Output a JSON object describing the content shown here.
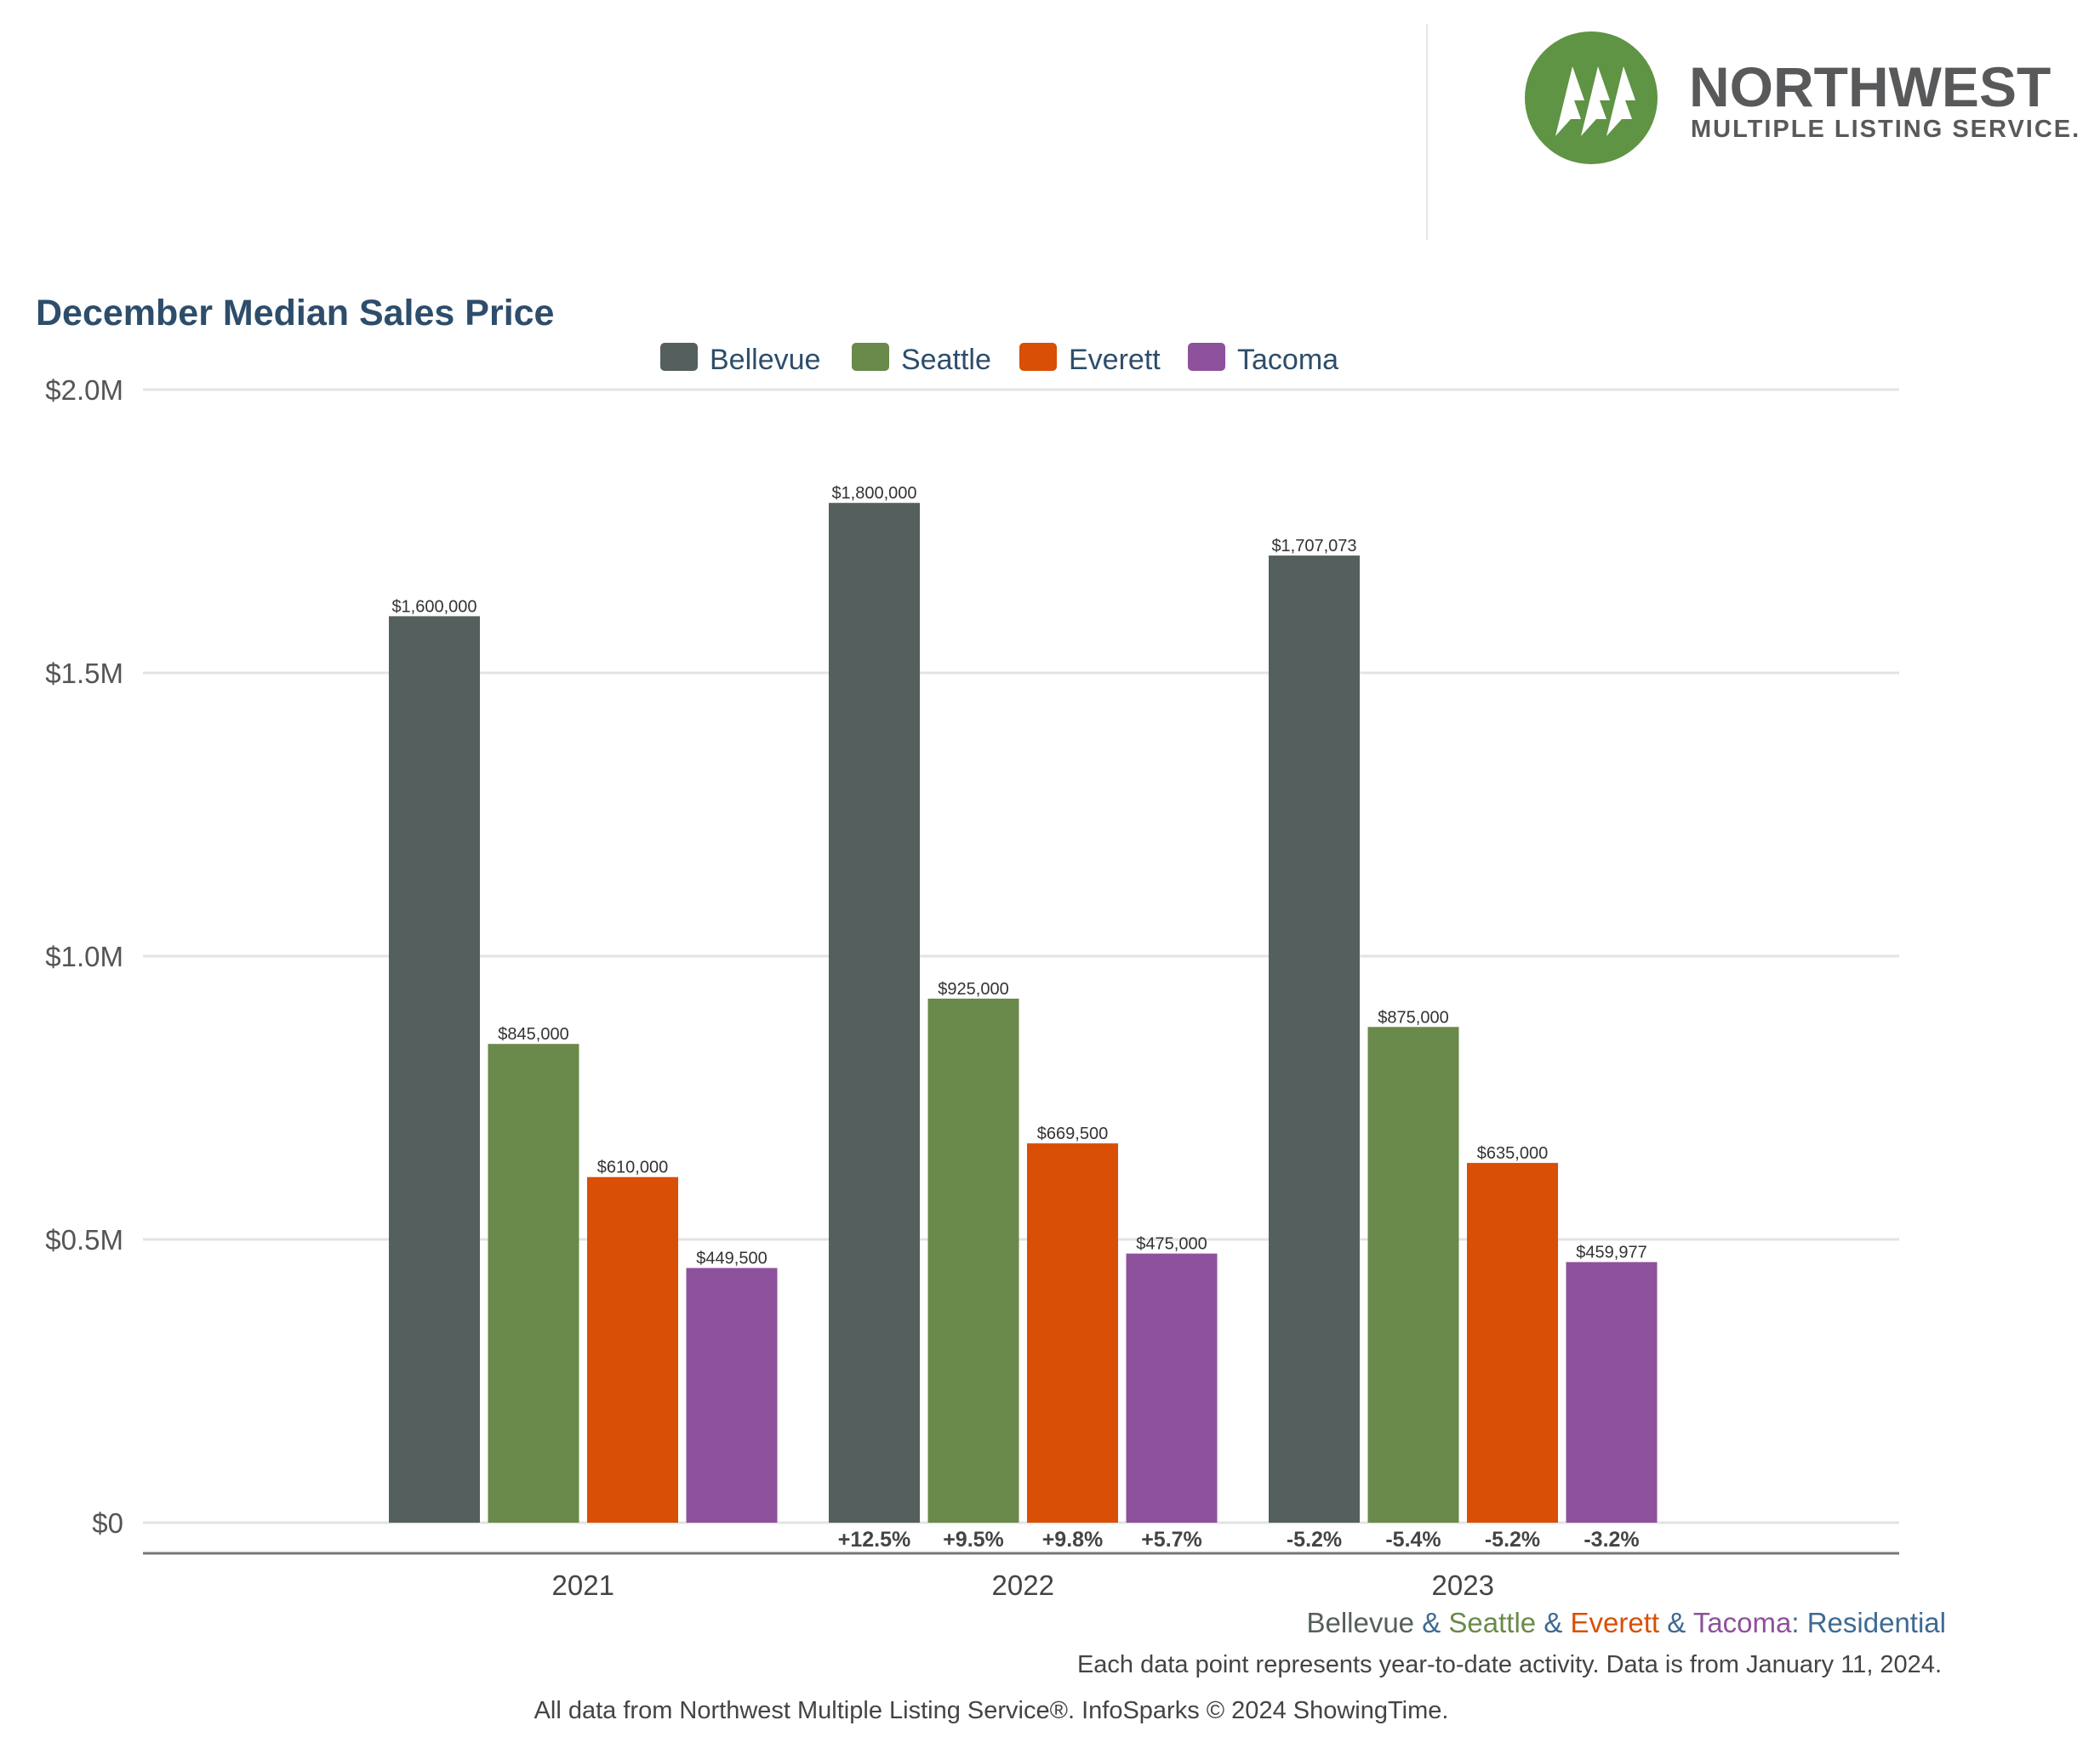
{
  "logo": {
    "name": "NORTHWEST",
    "subtitle": "MULTIPLE LISTING SERVICE.",
    "color": "#5e9444"
  },
  "chart_data": {
    "type": "bar",
    "title": "December Median Sales Price",
    "categories": [
      "2021",
      "2022",
      "2023"
    ],
    "series": [
      {
        "name": "Bellevue",
        "color": "#555f5d",
        "values": [
          1600000,
          1800000,
          1707073
        ],
        "labels": [
          "$1,600,000",
          "$1,800,000",
          "$1,707,073"
        ],
        "changes": [
          "",
          "+12.5%",
          "-5.2%"
        ]
      },
      {
        "name": "Seattle",
        "color": "#698a4a",
        "values": [
          845000,
          925000,
          875000
        ],
        "labels": [
          "$845,000",
          "$925,000",
          "$875,000"
        ],
        "changes": [
          "",
          "+9.5%",
          "-5.4%"
        ]
      },
      {
        "name": "Everett",
        "color": "#d94f05",
        "values": [
          610000,
          669500,
          635000
        ],
        "labels": [
          "$610,000",
          "$669,500",
          "$635,000"
        ],
        "changes": [
          "",
          "+9.8%",
          "-5.2%"
        ]
      },
      {
        "name": "Tacoma",
        "color": "#8e519b",
        "values": [
          449500,
          475000,
          459977
        ],
        "labels": [
          "$449,500",
          "$475,000",
          "$459,977"
        ],
        "changes": [
          "",
          "+5.7%",
          "-3.2%"
        ]
      }
    ],
    "yticks": [
      {
        "value": 0,
        "label": "$0"
      },
      {
        "value": 500000,
        "label": "$0.5M"
      },
      {
        "value": 1000000,
        "label": "$1.0M"
      },
      {
        "value": 1500000,
        "label": "$1.5M"
      },
      {
        "value": 2000000,
        "label": "$2.0M"
      }
    ],
    "ylim": [
      0,
      2000000
    ],
    "grid": true,
    "legend": "top-center"
  },
  "footer": {
    "series_line": [
      {
        "text": "Bellevue",
        "color": "#555f5d"
      },
      {
        "text": " & ",
        "color": "#3e6a94"
      },
      {
        "text": "Seattle",
        "color": "#698a4a"
      },
      {
        "text": " & ",
        "color": "#3e6a94"
      },
      {
        "text": "Everett",
        "color": "#d94f05"
      },
      {
        "text": " & ",
        "color": "#3e6a94"
      },
      {
        "text": "Tacoma",
        "color": "#8e519b"
      },
      {
        "text": ": Residential",
        "color": "#3e6a94"
      }
    ],
    "note": "Each data point represents year-to-date activity. Data is from January 11, 2024.",
    "source": "All data from Northwest Multiple Listing Service®. InfoSparks © 2024 ShowingTime."
  }
}
